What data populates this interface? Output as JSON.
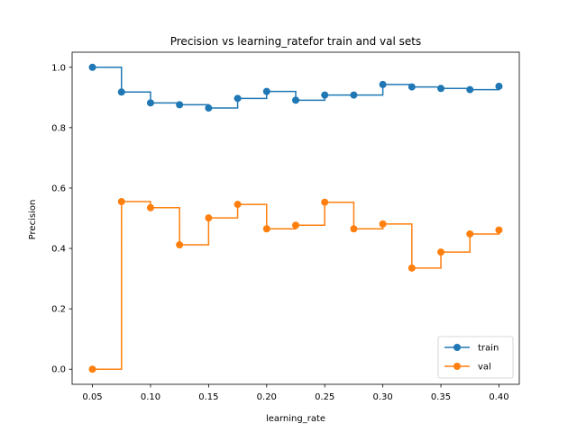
{
  "chart_data": {
    "type": "line",
    "drawstyle": "steps-post",
    "title": "Precision vs learning_ratefor train and val sets",
    "xlabel": "learning_rate",
    "ylabel": "Precision",
    "xlim": [
      0.0325,
      0.4175
    ],
    "ylim": [
      -0.05,
      1.05
    ],
    "xticks": [
      0.05,
      0.1,
      0.15,
      0.2,
      0.25,
      0.3,
      0.35,
      0.4
    ],
    "xtick_labels": [
      "0.05",
      "0.10",
      "0.15",
      "0.20",
      "0.25",
      "0.30",
      "0.35",
      "0.40"
    ],
    "yticks": [
      0.0,
      0.2,
      0.4,
      0.6,
      0.8,
      1.0
    ],
    "ytick_labels": [
      "0.0",
      "0.2",
      "0.4",
      "0.6",
      "0.8",
      "1.0"
    ],
    "grid": false,
    "legend_position": "lower-right",
    "x": [
      0.05,
      0.075,
      0.1,
      0.125,
      0.15,
      0.175,
      0.2,
      0.225,
      0.25,
      0.275,
      0.3,
      0.325,
      0.35,
      0.375,
      0.4
    ],
    "series": [
      {
        "name": "train",
        "color": "#1f77b4",
        "marker": "circle",
        "values": [
          1.0,
          0.918,
          0.882,
          0.876,
          0.865,
          0.897,
          0.92,
          0.891,
          0.908,
          0.908,
          0.943,
          0.935,
          0.93,
          0.926,
          0.937
        ]
      },
      {
        "name": "val",
        "color": "#ff7f0e",
        "marker": "circle",
        "values": [
          0.0,
          0.555,
          0.535,
          0.412,
          0.501,
          0.546,
          0.465,
          0.477,
          0.553,
          0.465,
          0.481,
          0.335,
          0.388,
          0.448,
          0.461
        ]
      }
    ]
  }
}
